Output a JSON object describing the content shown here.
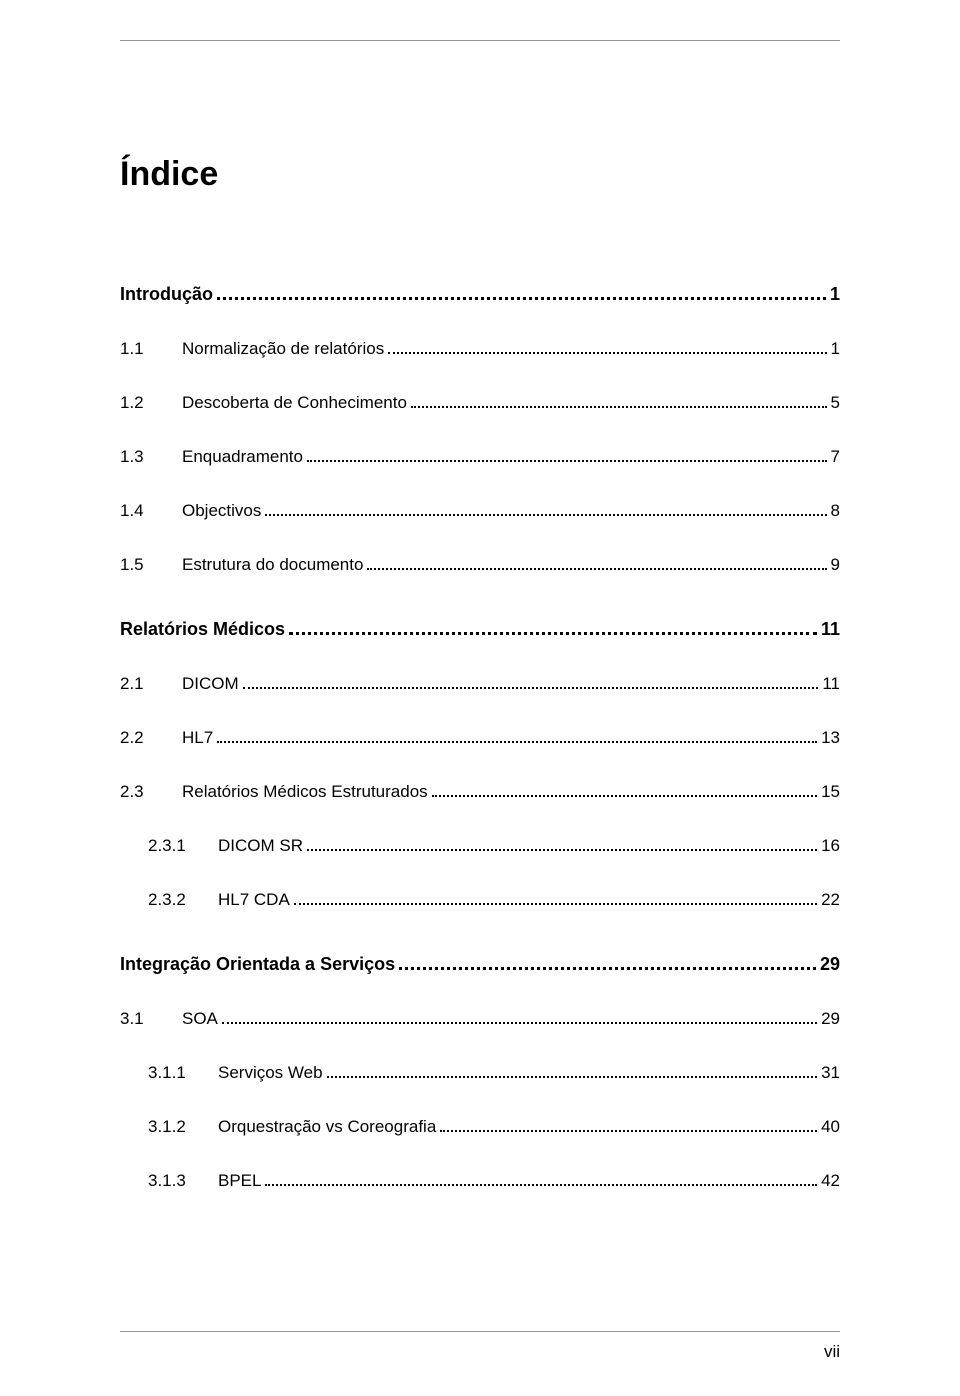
{
  "title": "Índice",
  "page_number": "vii",
  "entries": [
    {
      "level": "chapter",
      "text": "Introdução",
      "page": "1"
    },
    {
      "level": "1",
      "num": "1.1",
      "text": "Normalização de relatórios",
      "page": "1"
    },
    {
      "level": "1",
      "num": "1.2",
      "text": "Descoberta de Conhecimento",
      "page": "5"
    },
    {
      "level": "1",
      "num": "1.3",
      "text": "Enquadramento",
      "page": "7"
    },
    {
      "level": "1",
      "num": "1.4",
      "text": "Objectivos",
      "page": "8"
    },
    {
      "level": "1",
      "num": "1.5",
      "text": "Estrutura do documento",
      "page": "9"
    },
    {
      "level": "chapter",
      "text": "Relatórios Médicos",
      "page": "11"
    },
    {
      "level": "1",
      "num": "2.1",
      "text": "DICOM",
      "page": "11"
    },
    {
      "level": "1",
      "num": "2.2",
      "text": "HL7",
      "page": "13"
    },
    {
      "level": "1",
      "num": "2.3",
      "text": "Relatórios Médicos Estruturados",
      "page": "15"
    },
    {
      "level": "2",
      "num": "2.3.1",
      "text": "DICOM SR",
      "page": "16"
    },
    {
      "level": "2",
      "num": "2.3.2",
      "text": "HL7 CDA",
      "page": "22"
    },
    {
      "level": "chapter",
      "text": "Integração Orientada a Serviços",
      "page": "29"
    },
    {
      "level": "1",
      "num": "3.1",
      "text": "SOA",
      "page": "29"
    },
    {
      "level": "2",
      "num": "3.1.1",
      "text": "Serviços Web",
      "page": "31"
    },
    {
      "level": "2",
      "num": "3.1.2",
      "text": "Orquestração vs Coreografia",
      "page": "40"
    },
    {
      "level": "2",
      "num": "3.1.3",
      "text": "BPEL",
      "page": "42"
    }
  ]
}
